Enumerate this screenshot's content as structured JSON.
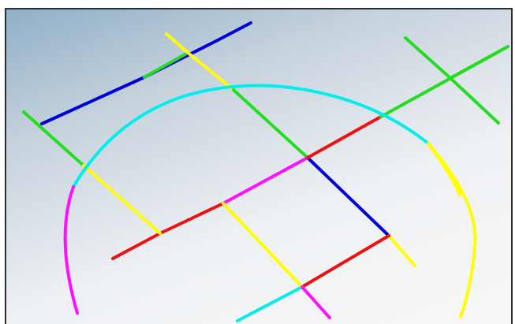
{
  "diagram": {
    "palette": {
      "blue": "#0000dd",
      "green": "#22dd22",
      "yellow": "#ffff00",
      "cyan": "#00eeee",
      "red": "#ee1111",
      "magenta": "#ff11ff"
    },
    "strokes": [
      {
        "name": "line-top-left-blue",
        "color": "blue"
      },
      {
        "name": "line-top-left-green",
        "color": "green"
      },
      {
        "name": "line-left-green",
        "color": "green"
      },
      {
        "name": "line-diagonal-yellow",
        "color": "yellow"
      },
      {
        "name": "line-middle-green",
        "color": "green"
      },
      {
        "name": "line-middle-blue",
        "color": "blue"
      },
      {
        "name": "line-lower-yellow",
        "color": "yellow"
      },
      {
        "name": "line-bottom-magenta",
        "color": "magenta"
      },
      {
        "name": "line-long-red-left",
        "color": "red"
      },
      {
        "name": "line-long-magenta",
        "color": "magenta"
      },
      {
        "name": "line-long-red-right",
        "color": "red"
      },
      {
        "name": "line-right-green",
        "color": "green"
      },
      {
        "name": "cross-green-a",
        "color": "green"
      },
      {
        "name": "cross-green-b",
        "color": "green"
      },
      {
        "name": "line-left-yellow",
        "color": "yellow"
      },
      {
        "name": "line-right-yellow",
        "color": "yellow"
      },
      {
        "name": "line-bottom-red",
        "color": "red"
      },
      {
        "name": "line-bottom-cyan",
        "color": "cyan"
      },
      {
        "name": "line-center-yellow",
        "color": "yellow"
      },
      {
        "name": "arc-cyan",
        "color": "cyan"
      },
      {
        "name": "arc-yellow",
        "color": "yellow"
      },
      {
        "name": "arc-magenta",
        "color": "magenta"
      }
    ]
  }
}
